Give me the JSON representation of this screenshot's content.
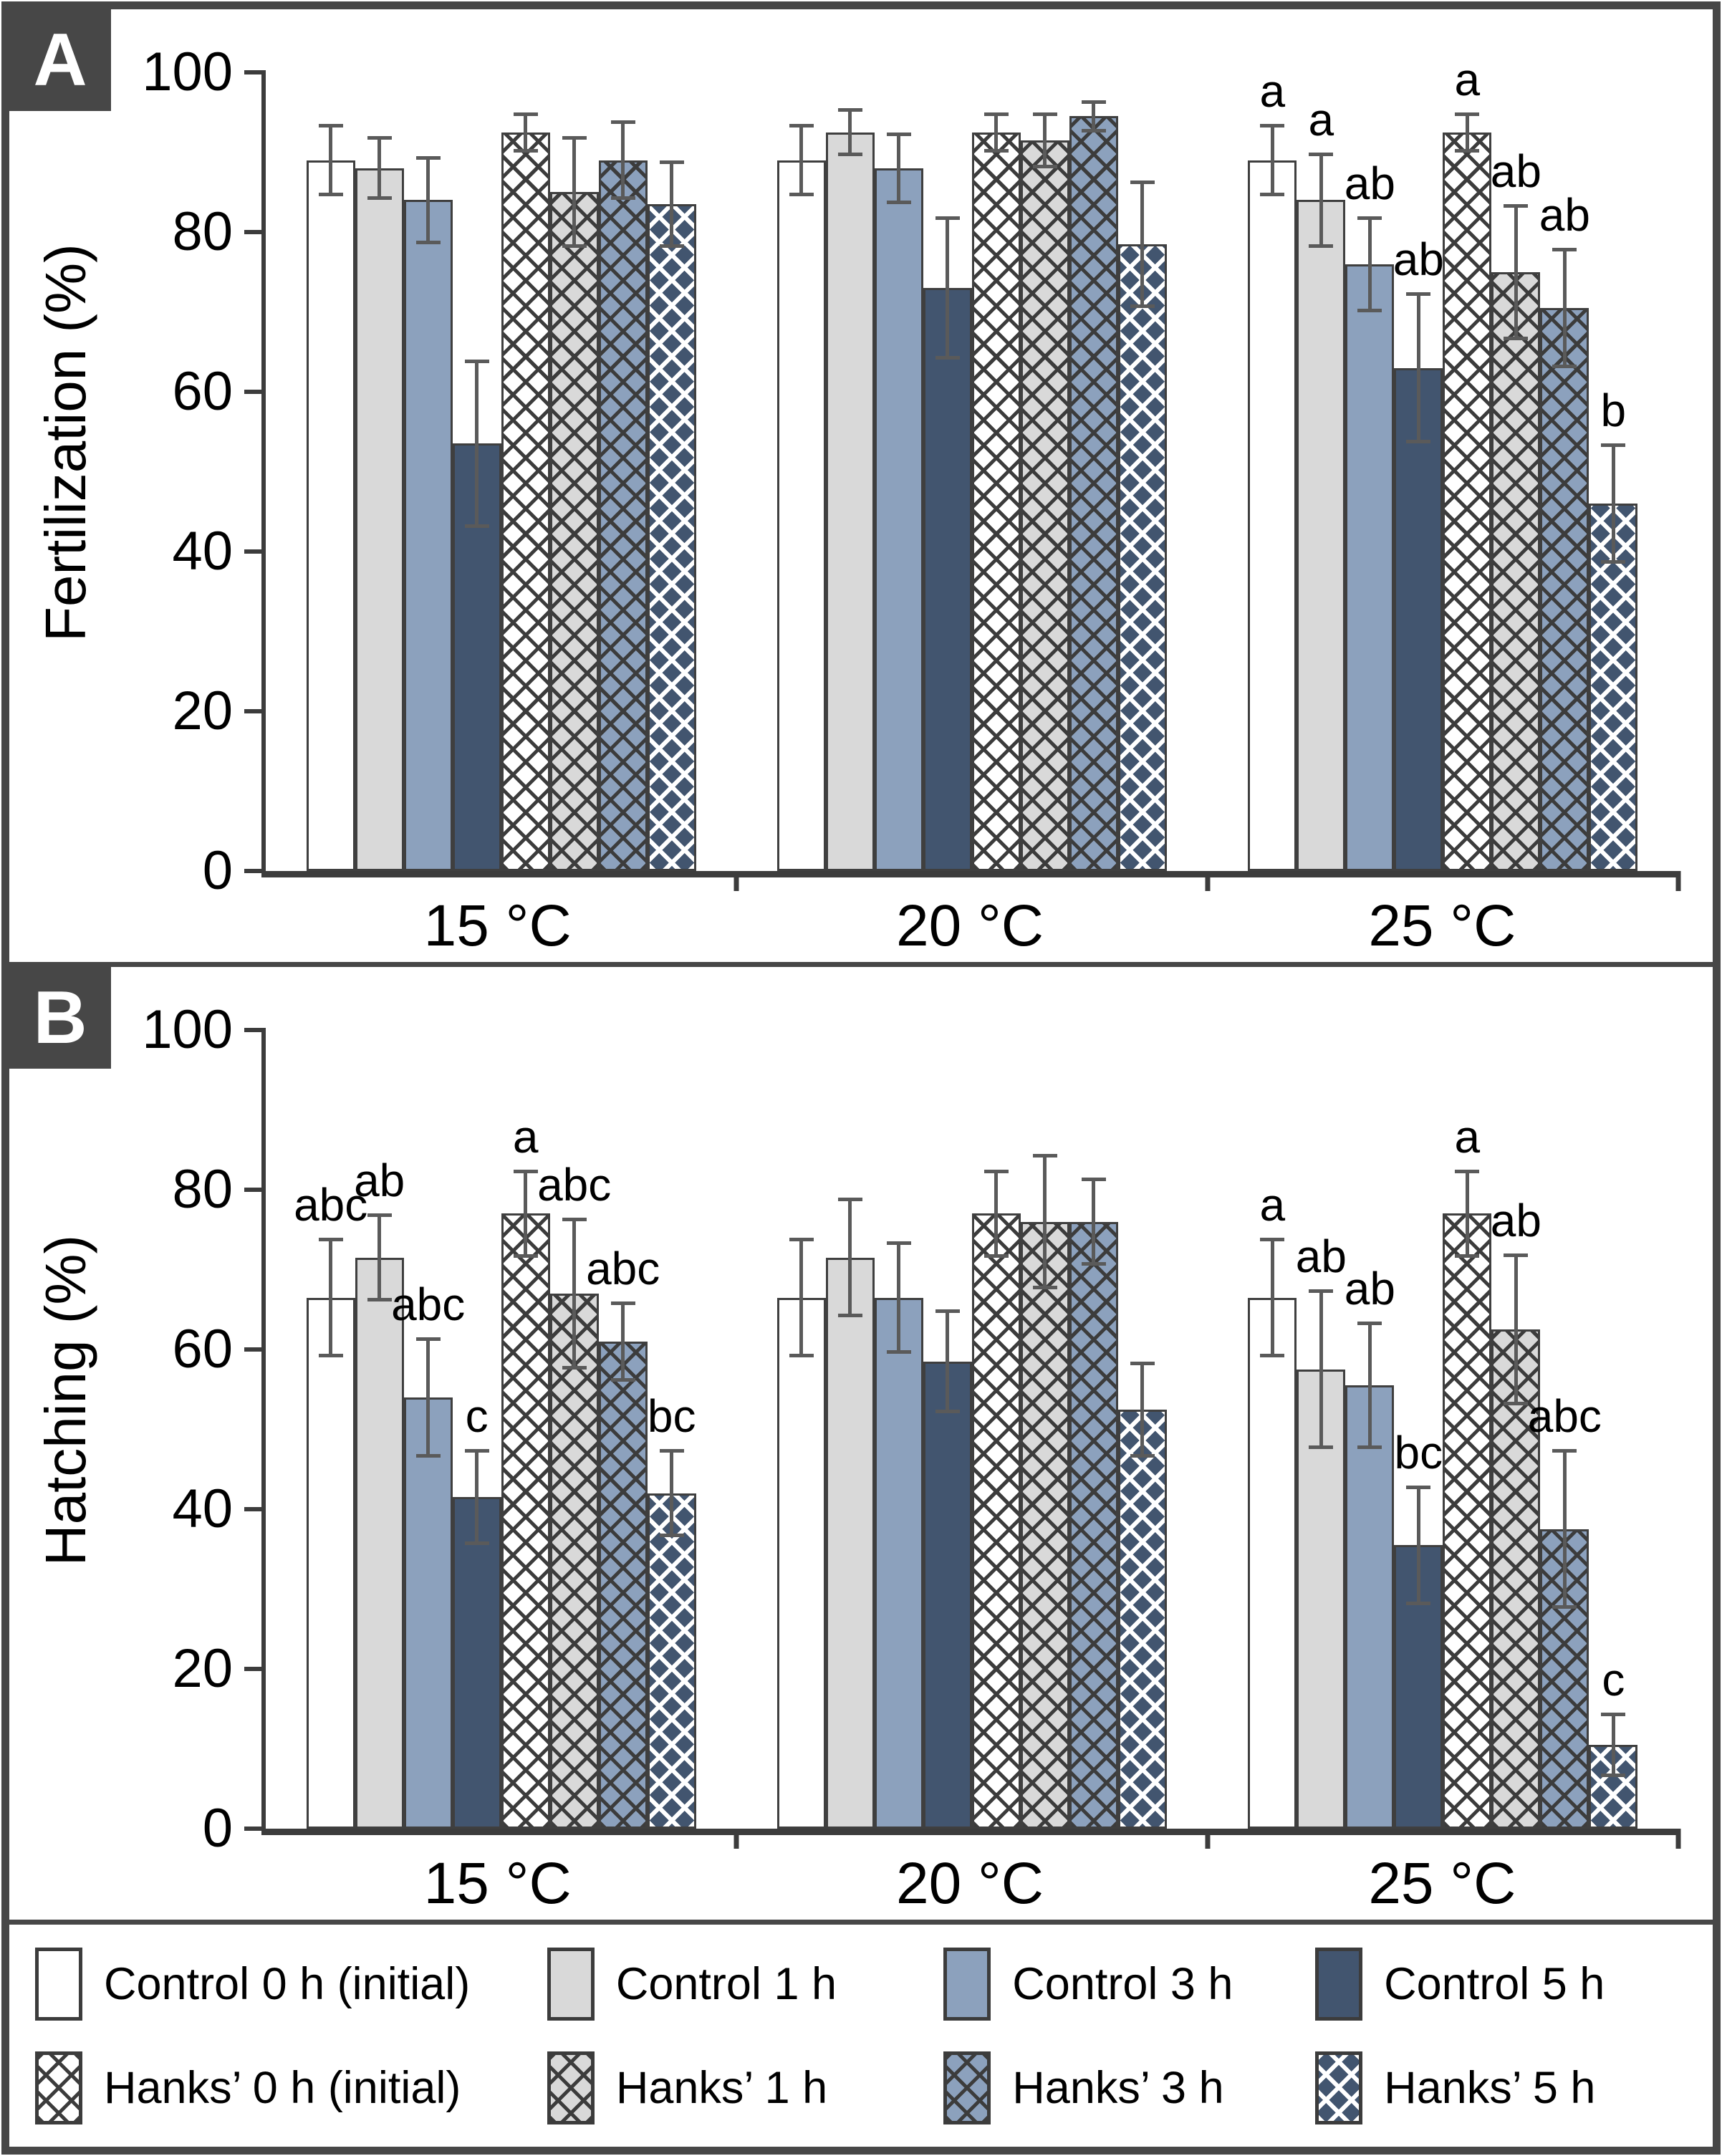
{
  "panels": [
    {
      "badge": "A",
      "ylabel": "Fertilization (%)"
    },
    {
      "badge": "B",
      "ylabel": "Hatching (%)"
    }
  ],
  "colors": {
    "frame": "#474747",
    "bar_white": "#ffffff",
    "bar_gray": "#d9d9d9",
    "bar_blue": "#8ca1bd",
    "bar_dark_blue": "#42556f",
    "hatch_line_dark": "#3c3c3c",
    "hatch_line_light": "#ffffff",
    "error_bar": "#5a5a5a"
  },
  "chart_data": [
    {
      "type": "bar",
      "panel": "A",
      "title": "",
      "xlabel": "",
      "ylabel": "Fertilization (%)",
      "categories": [
        "15 °C",
        "20 °C",
        "25 °C"
      ],
      "ylim": [
        0,
        100
      ],
      "yticks": [
        0,
        20,
        40,
        60,
        80,
        100
      ],
      "grid": false,
      "legend_position": "bottom",
      "series": [
        {
          "name": "Control 0 h (initial)",
          "cls": "s-c0",
          "values": [
            89,
            89,
            89
          ],
          "errors": [
            4.5,
            4.5,
            4.5
          ],
          "letters": [
            "",
            "",
            "a"
          ]
        },
        {
          "name": "Control 1 h",
          "cls": "s-c1",
          "values": [
            88,
            92.5,
            84
          ],
          "errors": [
            4,
            3,
            6
          ],
          "letters": [
            "",
            "",
            "a"
          ]
        },
        {
          "name": "Control 3 h",
          "cls": "s-c3",
          "values": [
            84,
            88,
            76
          ],
          "errors": [
            5.5,
            4.5,
            6
          ],
          "letters": [
            "",
            "",
            "ab"
          ]
        },
        {
          "name": "Control 5 h",
          "cls": "s-c5",
          "values": [
            53.5,
            73,
            63
          ],
          "errors": [
            10.5,
            9,
            9.5
          ],
          "letters": [
            "",
            "",
            "ab"
          ]
        },
        {
          "name": "Hanks’ 0 h (initial)",
          "cls": "s-h0",
          "values": [
            92.5,
            92.5,
            92.5
          ],
          "errors": [
            2.5,
            2.5,
            2.5
          ],
          "letters": [
            "",
            "",
            "a"
          ]
        },
        {
          "name": "Hanks’ 1 h",
          "cls": "s-h1",
          "values": [
            85,
            91.5,
            75
          ],
          "errors": [
            7,
            3.5,
            8.5
          ],
          "letters": [
            "",
            "",
            "ab"
          ]
        },
        {
          "name": "Hanks’ 3 h",
          "cls": "s-h3",
          "values": [
            89,
            94.5,
            70.5
          ],
          "errors": [
            5,
            2,
            7.5
          ],
          "letters": [
            "",
            "",
            "ab"
          ]
        },
        {
          "name": "Hanks’ 5 h",
          "cls": "s-h5",
          "values": [
            83.5,
            78.5,
            46
          ],
          "errors": [
            5.5,
            8,
            7.5
          ],
          "letters": [
            "",
            "",
            "b"
          ]
        }
      ]
    },
    {
      "type": "bar",
      "panel": "B",
      "title": "",
      "xlabel": "",
      "ylabel": "Hatching (%)",
      "categories": [
        "15 °C",
        "20 °C",
        "25 °C"
      ],
      "ylim": [
        0,
        100
      ],
      "yticks": [
        0,
        20,
        40,
        60,
        80,
        100
      ],
      "grid": false,
      "legend_position": "bottom",
      "series": [
        {
          "name": "Control 0 h (initial)",
          "cls": "s-c0",
          "values": [
            66.5,
            66.5,
            66.5
          ],
          "errors": [
            7.5,
            7.5,
            7.5
          ],
          "letters": [
            "abc",
            "",
            "a"
          ]
        },
        {
          "name": "Control 1 h",
          "cls": "s-c1",
          "values": [
            71.5,
            71.5,
            57.5
          ],
          "errors": [
            5.5,
            7.5,
            10
          ],
          "letters": [
            "ab",
            "",
            "ab"
          ]
        },
        {
          "name": "Control 3 h",
          "cls": "s-c3",
          "values": [
            54,
            66.5,
            55.5
          ],
          "errors": [
            7.5,
            7,
            8
          ],
          "letters": [
            "abc",
            "",
            "ab"
          ]
        },
        {
          "name": "Control 5 h",
          "cls": "s-c5",
          "values": [
            41.5,
            58.5,
            35.5
          ],
          "errors": [
            6,
            6.5,
            7.5
          ],
          "letters": [
            "c",
            "",
            "bc"
          ]
        },
        {
          "name": "Hanks’ 0 h (initial)",
          "cls": "s-h0",
          "values": [
            77,
            77,
            77
          ],
          "errors": [
            5.5,
            5.5,
            5.5
          ],
          "letters": [
            "a",
            "",
            "a"
          ]
        },
        {
          "name": "Hanks’ 1 h",
          "cls": "s-h1",
          "values": [
            67,
            76,
            62.5
          ],
          "errors": [
            9.5,
            8.5,
            9.5
          ],
          "letters": [
            "abc",
            "",
            "ab"
          ]
        },
        {
          "name": "Hanks’ 3 h",
          "cls": "s-h3",
          "values": [
            61,
            76,
            37.5
          ],
          "errors": [
            5,
            5.5,
            10
          ],
          "letters": [
            "abc",
            "",
            "abc"
          ]
        },
        {
          "name": "Hanks’ 5 h",
          "cls": "s-h5",
          "values": [
            42,
            52.5,
            10.5
          ],
          "errors": [
            5.5,
            6,
            4
          ],
          "letters": [
            "bc",
            "",
            "c"
          ]
        }
      ]
    }
  ],
  "legend": {
    "items": [
      {
        "label": "Control 0 h (initial)"
      },
      {
        "label": "Control 1 h"
      },
      {
        "label": "Control 3 h"
      },
      {
        "label": "Control 5 h"
      },
      {
        "label": "Hanks’ 0 h (initial)"
      },
      {
        "label": "Hanks’ 1 h"
      },
      {
        "label": "Hanks’ 3 h"
      },
      {
        "label": "Hanks’ 5 h"
      }
    ]
  }
}
